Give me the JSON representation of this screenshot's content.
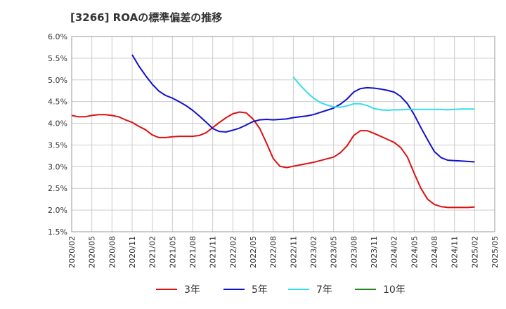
{
  "chart_data": {
    "type": "line",
    "title": "[3266]  ROAの標準偏差の推移",
    "xlabel": "",
    "ylabel": "",
    "ylim": [
      1.5,
      6.0
    ],
    "y_ticks": [
      "6.0%",
      "5.5%",
      "5.0%",
      "4.5%",
      "4.0%",
      "3.5%",
      "3.0%",
      "2.5%",
      "2.0%",
      "1.5%"
    ],
    "y_tick_values": [
      6.0,
      5.5,
      5.0,
      4.5,
      4.0,
      3.5,
      3.0,
      2.5,
      2.0,
      1.5
    ],
    "x_ticks": [
      "2020/02",
      "2020/05",
      "2020/08",
      "2020/11",
      "2021/02",
      "2021/05",
      "2021/08",
      "2021/11",
      "2022/02",
      "2022/05",
      "2022/08",
      "2022/11",
      "2023/02",
      "2023/05",
      "2023/08",
      "2023/11",
      "2024/02",
      "2024/05",
      "2024/08",
      "2024/11",
      "2025/02",
      "2025/05"
    ],
    "grid": true,
    "legend_position": "bottom",
    "series": [
      {
        "name": "3年",
        "color": "#dd1111",
        "values": [
          4.18,
          4.15,
          4.15,
          4.18,
          4.2,
          4.2,
          4.18,
          4.15,
          4.08,
          4.02,
          3.93,
          3.85,
          3.73,
          3.67,
          3.67,
          3.69,
          3.7,
          3.7,
          3.7,
          3.72,
          3.78,
          3.9,
          4.02,
          4.13,
          4.22,
          4.26,
          4.24,
          4.1,
          3.88,
          3.55,
          3.19,
          3.01,
          2.98,
          3.01,
          3.04,
          3.07,
          3.1,
          3.14,
          3.18,
          3.22,
          3.32,
          3.48,
          3.72,
          3.83,
          3.83,
          3.77,
          3.7,
          3.63,
          3.56,
          3.44,
          3.22,
          2.85,
          2.5,
          2.25,
          2.13,
          2.08,
          2.06,
          2.06,
          2.06,
          2.06,
          2.07
        ]
      },
      {
        "name": "5年",
        "color": "#1111cc",
        "values": [
          null,
          null,
          null,
          null,
          null,
          null,
          null,
          null,
          null,
          5.58,
          5.32,
          5.1,
          4.9,
          4.74,
          4.64,
          4.58,
          4.5,
          4.41,
          4.3,
          4.17,
          4.03,
          3.88,
          3.81,
          3.8,
          3.84,
          3.89,
          3.96,
          4.04,
          4.08,
          4.09,
          4.08,
          4.09,
          4.1,
          4.13,
          4.15,
          4.17,
          4.2,
          4.25,
          4.3,
          4.35,
          4.44,
          4.56,
          4.72,
          4.8,
          4.82,
          4.81,
          4.79,
          4.76,
          4.72,
          4.62,
          4.45,
          4.2,
          3.9,
          3.62,
          3.35,
          3.21,
          3.15,
          3.14,
          3.13,
          3.12,
          3.11
        ]
      },
      {
        "name": "7年",
        "color": "#33ddee",
        "values": [
          null,
          null,
          null,
          null,
          null,
          null,
          null,
          null,
          null,
          null,
          null,
          null,
          null,
          null,
          null,
          null,
          null,
          null,
          null,
          null,
          null,
          null,
          null,
          null,
          null,
          null,
          null,
          null,
          null,
          null,
          null,
          null,
          null,
          5.07,
          4.88,
          4.72,
          4.58,
          4.48,
          4.42,
          4.38,
          4.37,
          4.4,
          4.45,
          4.45,
          4.41,
          4.34,
          4.31,
          4.3,
          4.31,
          4.31,
          4.32,
          4.32,
          4.32,
          4.32,
          4.32,
          4.32,
          4.31,
          4.32,
          4.33,
          4.33,
          4.33
        ]
      },
      {
        "name": "10年",
        "color": "#228822",
        "values": []
      }
    ]
  }
}
